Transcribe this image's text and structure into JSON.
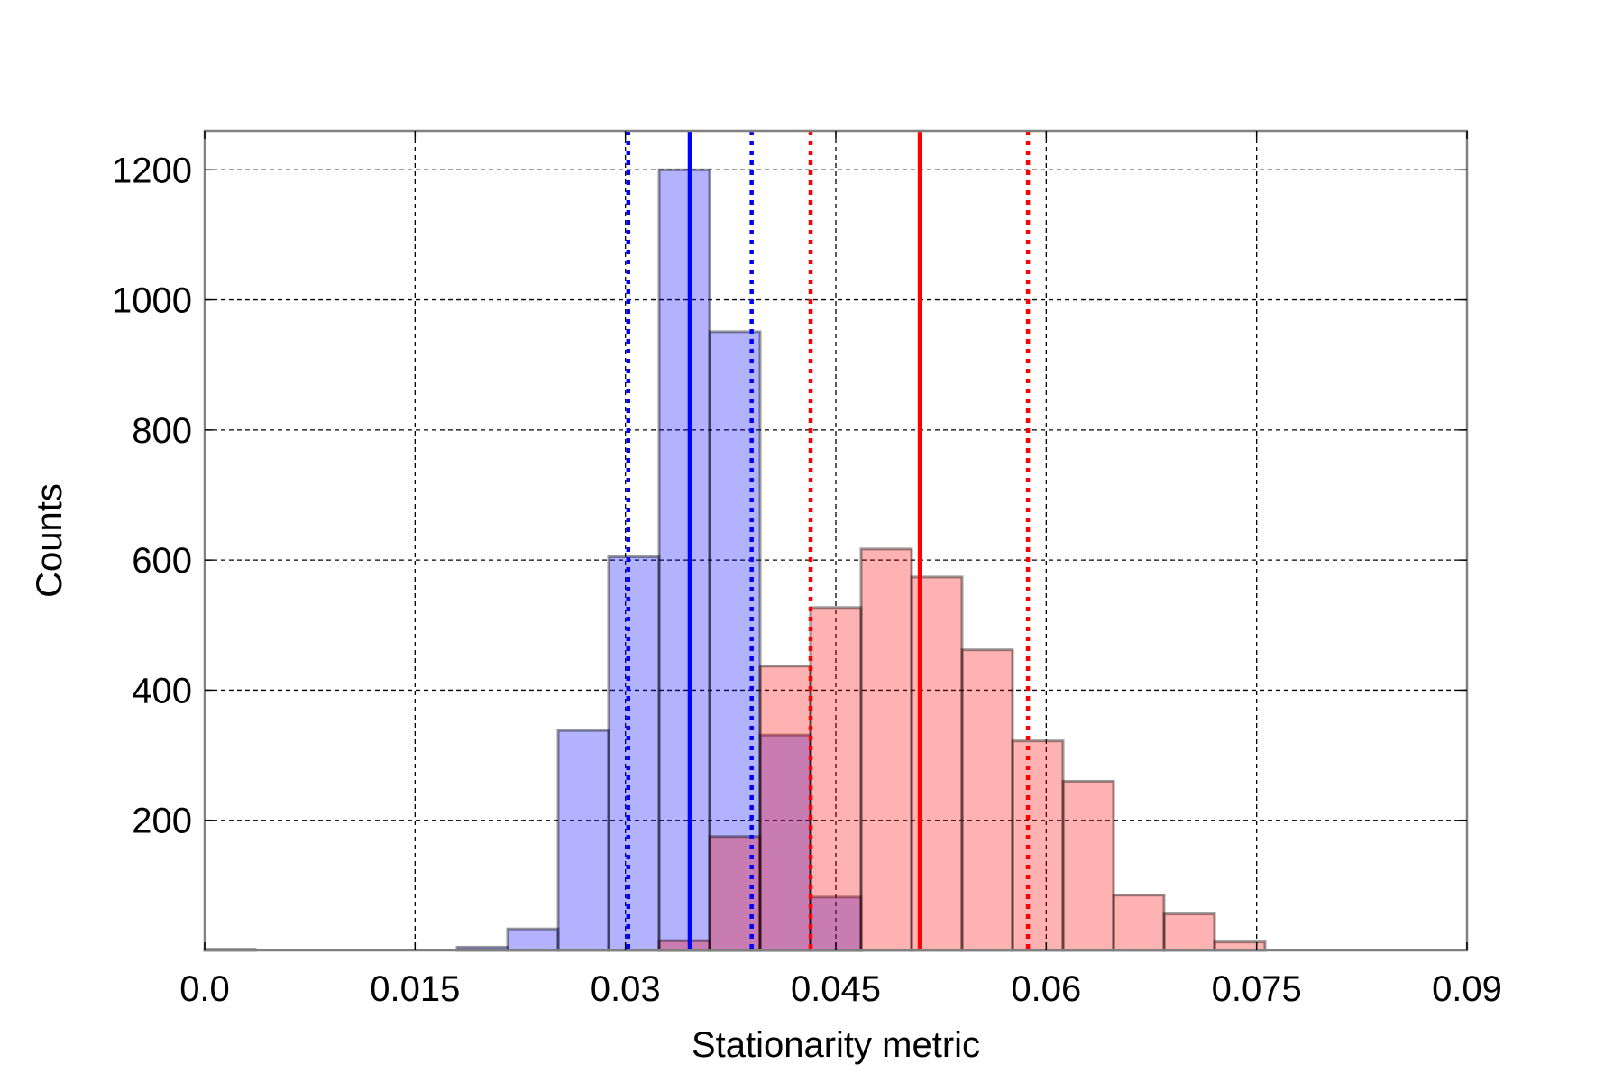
{
  "chart_data": {
    "type": "bar",
    "title": "",
    "xlabel": "Stationarity metric",
    "ylabel": "Counts",
    "xlim": [
      0.0,
      0.09
    ],
    "ylim": [
      0,
      1260
    ],
    "xticks": [
      0.0,
      0.015,
      0.03,
      0.045,
      0.06,
      0.075,
      0.09
    ],
    "xtick_labels": [
      "0.0",
      "0.015",
      "0.03",
      "0.045",
      "0.06",
      "0.075",
      "0.09"
    ],
    "yticks": [
      200,
      400,
      600,
      800,
      1000,
      1200
    ],
    "ytick_labels": [
      "200",
      "400",
      "600",
      "800",
      "1000",
      "1200"
    ],
    "grid": true,
    "series": [
      {
        "color": "#0000ff",
        "bin_edges": [
          0.0,
          0.0036,
          0.0072,
          0.0108,
          0.0144,
          0.018,
          0.0216,
          0.0252,
          0.0288,
          0.0324,
          0.036,
          0.0396,
          0.0432,
          0.0468
        ],
        "counts": [
          2,
          0,
          0,
          0,
          0,
          5,
          33,
          338,
          605,
          1200,
          951,
          331,
          82
        ],
        "mean": 0.0346,
        "lower": 0.0302,
        "upper": 0.039
      },
      {
        "color": "#ff0000",
        "bin_edges": [
          0.0324,
          0.036,
          0.0396,
          0.0432,
          0.0468,
          0.0504,
          0.054,
          0.0576,
          0.0612,
          0.0648,
          0.0684,
          0.072,
          0.0756
        ],
        "counts": [
          15,
          175,
          437,
          527,
          617,
          574,
          462,
          322,
          260,
          85,
          56,
          13
        ],
        "mean": 0.051,
        "lower": 0.0432,
        "upper": 0.0587
      }
    ]
  }
}
